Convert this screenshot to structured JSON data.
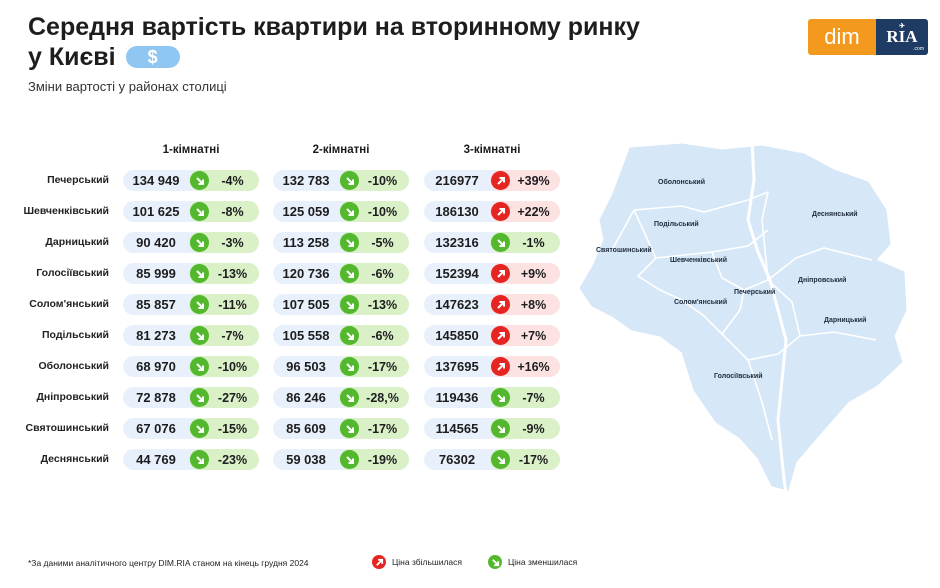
{
  "title": {
    "line1": "Середня вартість квартири на вторинному ринку",
    "line2": "у Києві",
    "currency_symbol": "$"
  },
  "subtitle": "Зміни вартості у районах столиці",
  "logo": {
    "dim": "dim",
    "ria": "RIA",
    "ria_com": ".com"
  },
  "columns": [
    "1-кімнатні",
    "2-кімнатні",
    "3-кімнатні"
  ],
  "rows": [
    {
      "district": "Печерський",
      "cells": [
        {
          "value": "134 949",
          "change": "-4%",
          "trend": "down"
        },
        {
          "value": "132 783",
          "change": "-10%",
          "trend": "down"
        },
        {
          "value": "216977",
          "change": "+39%",
          "trend": "up"
        }
      ]
    },
    {
      "district": "Шевченківський",
      "cells": [
        {
          "value": "101 625",
          "change": "-8%",
          "trend": "down"
        },
        {
          "value": "125 059",
          "change": "-10%",
          "trend": "down"
        },
        {
          "value": "186130",
          "change": "+22%",
          "trend": "up"
        }
      ]
    },
    {
      "district": "Дарницький",
      "cells": [
        {
          "value": "90 420",
          "change": "-3%",
          "trend": "down"
        },
        {
          "value": "113 258",
          "change": "-5%",
          "trend": "down"
        },
        {
          "value": "132316",
          "change": "-1%",
          "trend": "down"
        }
      ]
    },
    {
      "district": "Голосіївський",
      "cells": [
        {
          "value": "85 999",
          "change": "-13%",
          "trend": "down"
        },
        {
          "value": "120 736",
          "change": "-6%",
          "trend": "down"
        },
        {
          "value": "152394",
          "change": "+9%",
          "trend": "up"
        }
      ]
    },
    {
      "district": "Солом'янський",
      "cells": [
        {
          "value": "85 857",
          "change": "-11%",
          "trend": "down"
        },
        {
          "value": "107 505",
          "change": "-13%",
          "trend": "down"
        },
        {
          "value": "147623",
          "change": "+8%",
          "trend": "up"
        }
      ]
    },
    {
      "district": "Подільський",
      "cells": [
        {
          "value": "81 273",
          "change": "-7%",
          "trend": "down"
        },
        {
          "value": "105 558",
          "change": "-6%",
          "trend": "down"
        },
        {
          "value": "145850",
          "change": "+7%",
          "trend": "up"
        }
      ]
    },
    {
      "district": "Оболонський",
      "cells": [
        {
          "value": "68 970",
          "change": "-10%",
          "trend": "down"
        },
        {
          "value": "96 503",
          "change": "-17%",
          "trend": "down"
        },
        {
          "value": "137695",
          "change": "+16%",
          "trend": "up"
        }
      ]
    },
    {
      "district": "Дніпровський",
      "cells": [
        {
          "value": "72 878",
          "change": "-27%",
          "trend": "down"
        },
        {
          "value": "86 246",
          "change": "-28,%",
          "trend": "down"
        },
        {
          "value": "119436",
          "change": "-7%",
          "trend": "down"
        }
      ]
    },
    {
      "district": "Святошинський",
      "cells": [
        {
          "value": "67 076",
          "change": "-15%",
          "trend": "down"
        },
        {
          "value": "85 609",
          "change": "-17%",
          "trend": "down"
        },
        {
          "value": "114565",
          "change": "-9%",
          "trend": "down"
        }
      ]
    },
    {
      "district": "Деснянський",
      "cells": [
        {
          "value": "44 769",
          "change": "-23%",
          "trend": "down"
        },
        {
          "value": "59 038",
          "change": "-19%",
          "trend": "down"
        },
        {
          "value": "76302",
          "change": "-17%",
          "trend": "down"
        }
      ]
    }
  ],
  "map_labels": {
    "obolonskyi": "Оболонський",
    "desnianskyi": "Деснянський",
    "podilskyi": "Подільський",
    "sviatoshynskyi": "Святошинський",
    "shevchenkivskyi": "Шевченківський",
    "dniprovskyi": "Дніпровський",
    "pecherskyi": "Печерський",
    "solomianskyi": "Солом'янський",
    "darnytskyi": "Дарницький",
    "holosiivskyi": "Голосіївський"
  },
  "footnote": "*За даними аналітичного центру DIM.RIA станом на кінець грудня 2024",
  "legend": {
    "up": "Ціна збільшилася",
    "down": "Ціна зменшилася"
  },
  "colors": {
    "up": "#e52521",
    "down": "#53b82e",
    "map": "#d6e7f8",
    "logo_orange": "#f39a1e",
    "logo_navy": "#1d3b63"
  },
  "icons": {
    "up": "arrow-up-right-icon",
    "down": "arrow-down-right-icon"
  }
}
